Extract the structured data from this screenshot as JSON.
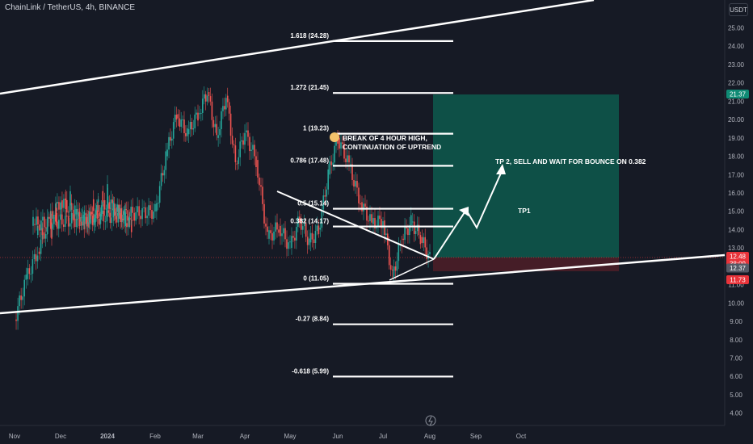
{
  "header": {
    "title": "ChainLink / TetherUS, 4h, BINANCE",
    "unit": "USDT"
  },
  "chart_data": {
    "type": "line",
    "instrument": "ChainLink / TetherUS",
    "interval": "4h",
    "exchange": "BINANCE",
    "ylim": [
      4.0,
      25.0
    ],
    "y_ticks": [
      "4.00",
      "5.00",
      "6.00",
      "7.00",
      "8.00",
      "9.00",
      "10.00",
      "11.00",
      "12.00",
      "13.00",
      "14.00",
      "15.00",
      "16.00",
      "17.00",
      "18.00",
      "19.00",
      "20.00",
      "21.00",
      "22.00",
      "23.00",
      "24.00",
      "25.00"
    ],
    "x_ticks": [
      "Nov",
      "Dec",
      "2024",
      "Feb",
      "Mar",
      "Apr",
      "May",
      "Jun",
      "Jul",
      "Aug",
      "Sep",
      "Oct"
    ],
    "price_path": [
      [
        "Nov",
        9.1
      ],
      [
        "Nov",
        11.3
      ],
      [
        "Nov",
        12.8
      ],
      [
        "Nov",
        14.5
      ],
      [
        "Dec",
        15.6
      ],
      [
        "Dec",
        14.3
      ],
      [
        "Dec",
        15.5
      ],
      [
        "Dec",
        14.2
      ],
      [
        "2024",
        16.1
      ],
      [
        "2024",
        14.5
      ],
      [
        "2024",
        15.7
      ],
      [
        "2024",
        13.9
      ],
      [
        "2024",
        14.3
      ],
      [
        "Feb",
        15.0
      ],
      [
        "Feb",
        18.0
      ],
      [
        "Feb",
        20.3
      ],
      [
        "Feb",
        19.2
      ],
      [
        "Mar",
        20.3
      ],
      [
        "Mar",
        21.5
      ],
      [
        "Mar",
        19.0
      ],
      [
        "Mar",
        21.3
      ],
      [
        "Mar",
        17.6
      ],
      [
        "Apr",
        19.3
      ],
      [
        "Apr",
        17.8
      ],
      [
        "Apr",
        13.5
      ],
      [
        "Apr",
        14.2
      ],
      [
        "May",
        13.0
      ],
      [
        "May",
        14.6
      ],
      [
        "May",
        13.3
      ],
      [
        "May",
        14.0
      ],
      [
        "May",
        17.0
      ],
      [
        "Jun",
        19.0
      ],
      [
        "Jun",
        17.5
      ],
      [
        "Jun",
        15.5
      ],
      [
        "Jun",
        14.3
      ],
      [
        "Jul",
        14.5
      ],
      [
        "Jul",
        11.4
      ],
      [
        "Jul",
        13.5
      ],
      [
        "Jul",
        14.4
      ],
      [
        "Jul",
        13.6
      ],
      [
        "Aug",
        12.4
      ]
    ],
    "y_markers": [
      {
        "label": "21.37",
        "color": "#0f8b75"
      },
      {
        "label": "12.48",
        "sub": "38:09",
        "color": "#e8333a"
      },
      {
        "label": "12.37",
        "color": "#555a66"
      },
      {
        "label": "11.73",
        "color": "#e8333a"
      }
    ],
    "fib_levels": [
      {
        "label": "1.618 (24.28)",
        "value": 24.28
      },
      {
        "label": "1.272 (21.45)",
        "value": 21.45
      },
      {
        "label": "1 (19.23)",
        "value": 19.23
      },
      {
        "label": "0.786 (17.48)",
        "value": 17.48
      },
      {
        "label": "0.5 (15.14)",
        "value": 15.14
      },
      {
        "label": "0.382 (14.17)",
        "value": 14.17
      },
      {
        "label": "0 (11.05)",
        "value": 11.05
      },
      {
        "label": "-0.27 (8.84)",
        "value": 8.84
      },
      {
        "label": "-0.618 (5.99)",
        "value": 5.99
      }
    ],
    "position": {
      "entry": 12.48,
      "target": 21.37,
      "stop": 11.73
    },
    "annotations": [
      {
        "text": "BREAK OF 4 HOUR HIGH,"
      },
      {
        "text": "CONTINUATION OF UPTREND"
      },
      {
        "text": "TP 2, SELL AND WAIT FOR BOUNCE ON 0.382"
      },
      {
        "text": "TP1"
      }
    ],
    "colors": {
      "up": "#26a69a",
      "down": "#ef5350",
      "target_zone": "#0d5a4e",
      "stop_zone": "#4a1e28"
    },
    "grid": false
  }
}
